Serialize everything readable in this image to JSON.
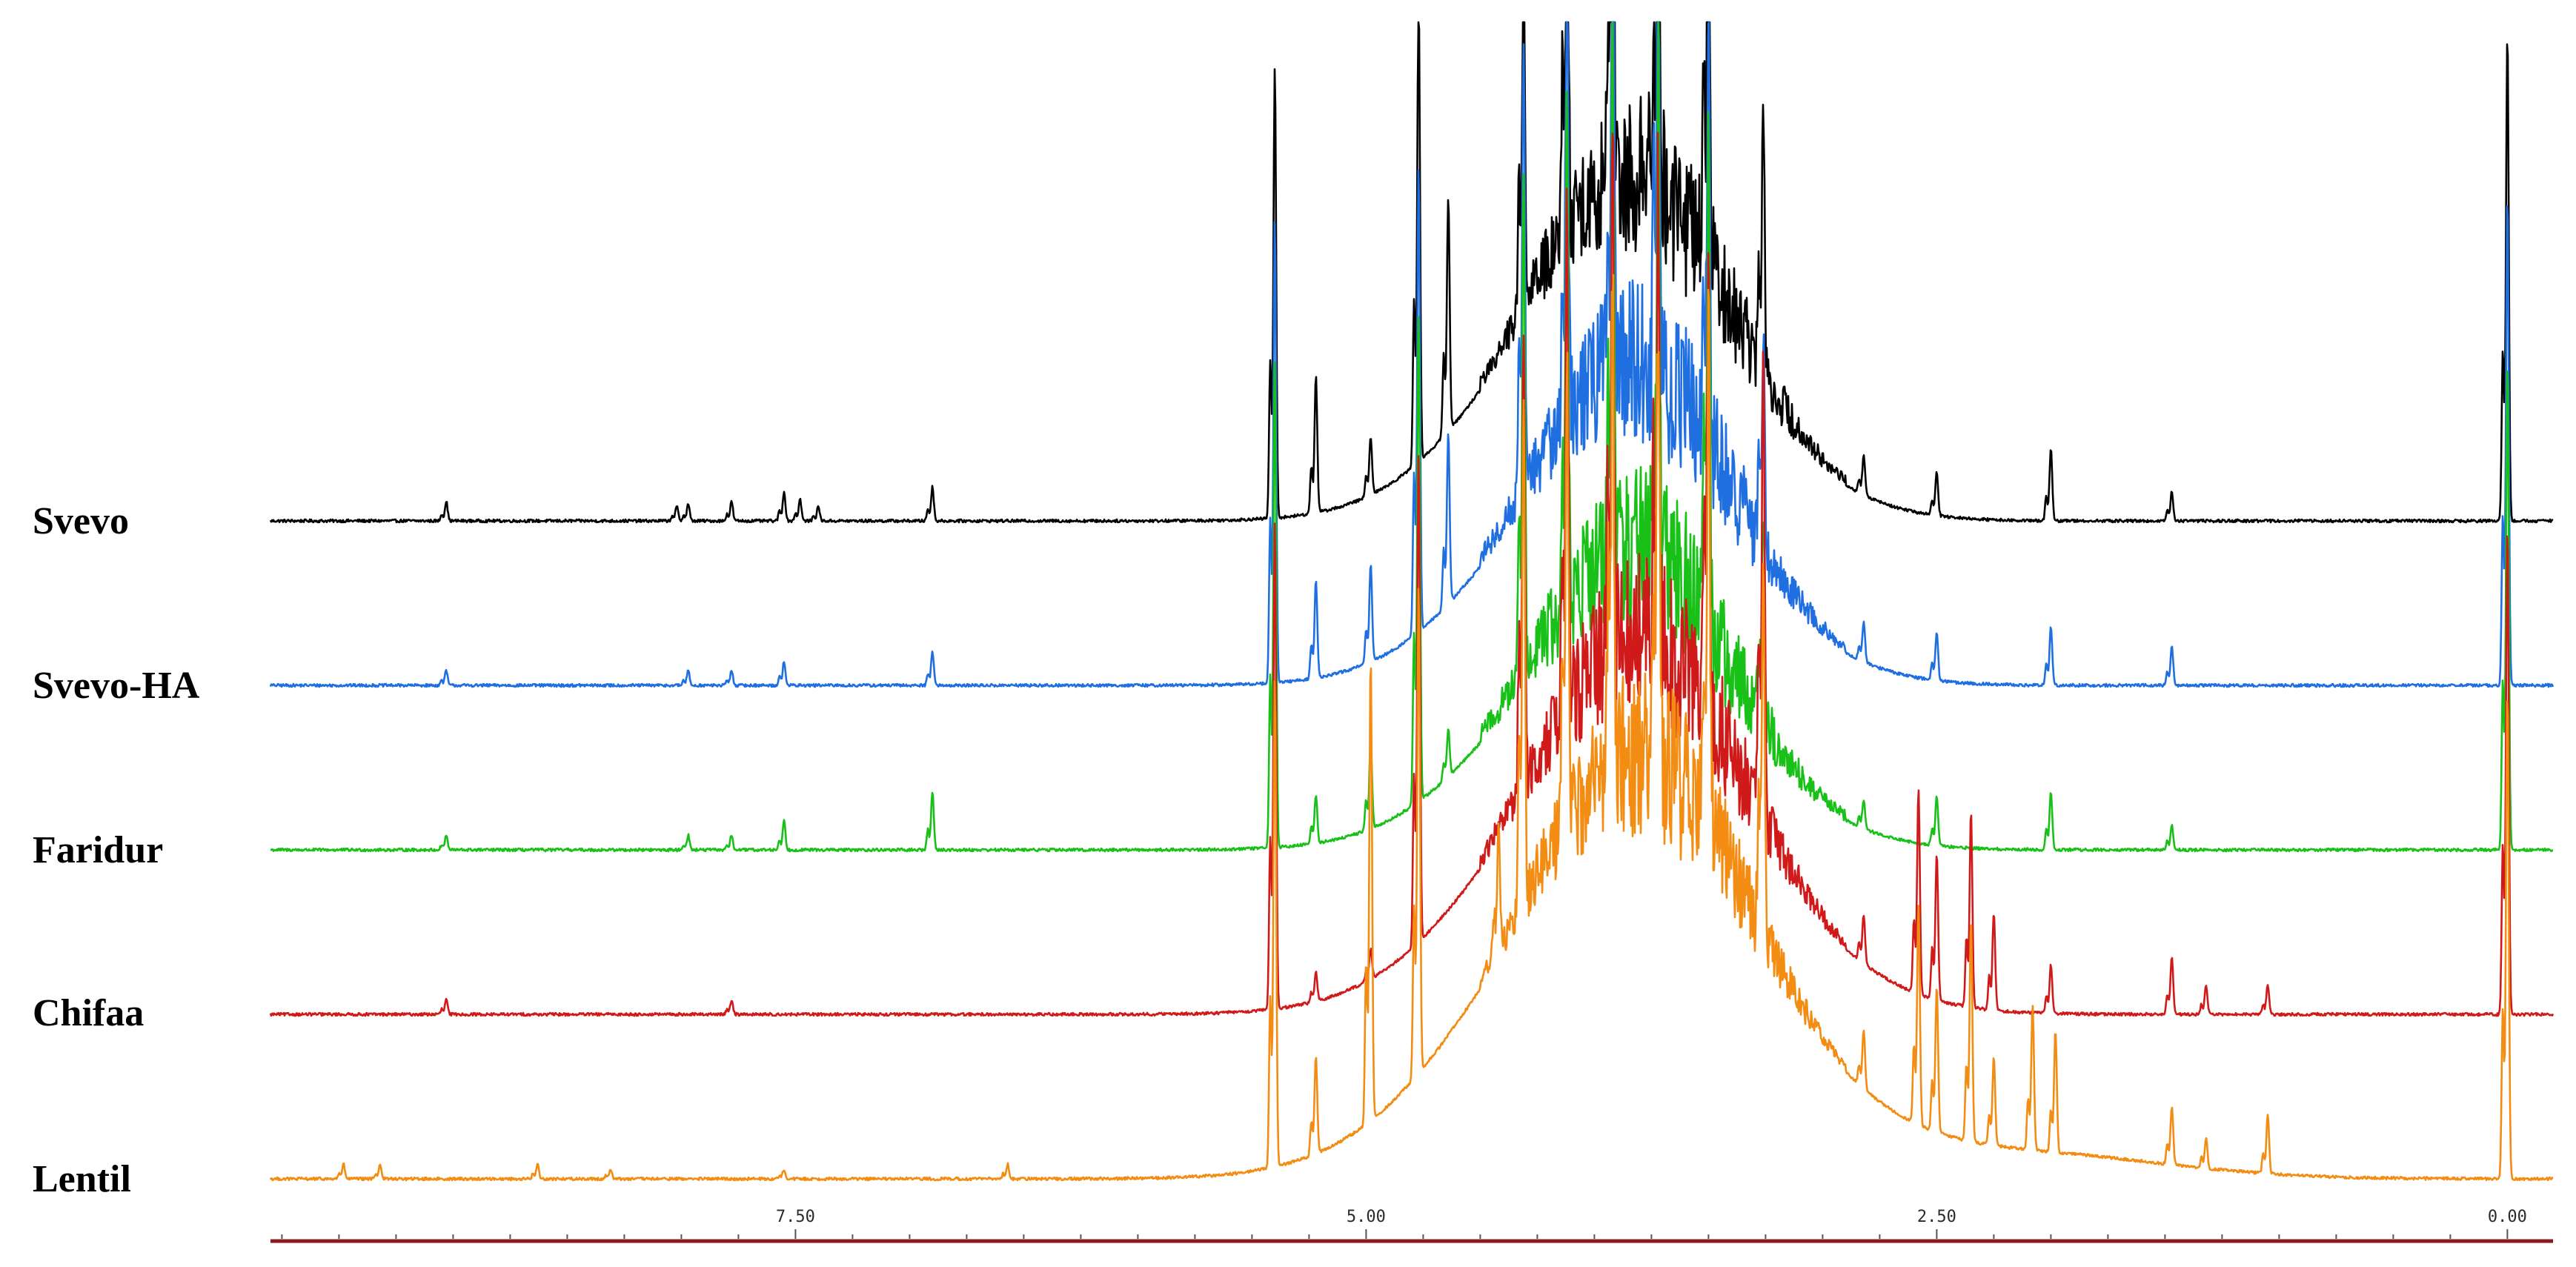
{
  "chart_data": {
    "type": "line",
    "title": "",
    "xlabel": "",
    "ylabel": "",
    "x_reversed": true,
    "xlim": [
      9.8,
      -0.2
    ],
    "x_ticks": [
      {
        "value": 7.5,
        "label": "7.50"
      },
      {
        "value": 5.0,
        "label": "5.00"
      },
      {
        "value": 2.5,
        "label": "2.50"
      },
      {
        "value": 0.0,
        "label": "0.00"
      }
    ],
    "y_axis_shown": false,
    "grid": false,
    "legend": "none",
    "baseline_color": "#8b1a1a",
    "series": [
      {
        "name": "Svevo",
        "color": "#000000",
        "peaks": [
          {
            "x": 9.03,
            "h": 0.04
          },
          {
            "x": 8.02,
            "h": 0.03
          },
          {
            "x": 7.97,
            "h": 0.035
          },
          {
            "x": 7.78,
            "h": 0.04
          },
          {
            "x": 7.55,
            "h": 0.06
          },
          {
            "x": 7.48,
            "h": 0.045
          },
          {
            "x": 7.4,
            "h": 0.03
          },
          {
            "x": 6.9,
            "h": 0.07
          },
          {
            "x": 5.4,
            "h": 0.92
          },
          {
            "x": 5.22,
            "h": 0.28
          },
          {
            "x": 4.98,
            "h": 0.12
          },
          {
            "x": 4.77,
            "h": 0.96
          },
          {
            "x": 4.64,
            "h": 0.48
          },
          {
            "x": 4.31,
            "h": 0.78
          },
          {
            "x": 4.12,
            "h": 0.98
          },
          {
            "x": 3.92,
            "h": 1.0
          },
          {
            "x": 3.72,
            "h": 1.0
          },
          {
            "x": 3.5,
            "h": 1.0
          },
          {
            "x": 3.26,
            "h": 0.58
          },
          {
            "x": 2.82,
            "h": 0.08
          },
          {
            "x": 2.5,
            "h": 0.09
          },
          {
            "x": 2.0,
            "h": 0.15
          },
          {
            "x": 1.47,
            "h": 0.06
          },
          {
            "x": 0.0,
            "h": 1.0
          }
        ],
        "humps": [
          {
            "x": 3.9,
            "h": 0.55,
            "w": 0.5
          }
        ]
      },
      {
        "name": "Svevo-HA",
        "color": "#1f6fe0",
        "peaks": [
          {
            "x": 9.03,
            "h": 0.03
          },
          {
            "x": 7.97,
            "h": 0.03
          },
          {
            "x": 7.78,
            "h": 0.03
          },
          {
            "x": 7.55,
            "h": 0.05
          },
          {
            "x": 6.9,
            "h": 0.07
          },
          {
            "x": 5.4,
            "h": 0.95
          },
          {
            "x": 5.22,
            "h": 0.2
          },
          {
            "x": 4.98,
            "h": 0.2
          },
          {
            "x": 4.77,
            "h": 0.95
          },
          {
            "x": 4.64,
            "h": 0.35
          },
          {
            "x": 4.31,
            "h": 0.9
          },
          {
            "x": 4.12,
            "h": 0.98
          },
          {
            "x": 3.92,
            "h": 1.0
          },
          {
            "x": 3.72,
            "h": 1.0
          },
          {
            "x": 3.5,
            "h": 0.95
          },
          {
            "x": 3.26,
            "h": 0.42
          },
          {
            "x": 2.82,
            "h": 0.08
          },
          {
            "x": 2.5,
            "h": 0.1
          },
          {
            "x": 2.0,
            "h": 0.12
          },
          {
            "x": 1.47,
            "h": 0.08
          },
          {
            "x": 0.0,
            "h": 1.0
          }
        ],
        "humps": [
          {
            "x": 3.9,
            "h": 0.5,
            "w": 0.5
          }
        ]
      },
      {
        "name": "Faridur",
        "color": "#18c018",
        "peaks": [
          {
            "x": 9.03,
            "h": 0.03
          },
          {
            "x": 7.97,
            "h": 0.03
          },
          {
            "x": 7.78,
            "h": 0.03
          },
          {
            "x": 7.55,
            "h": 0.06
          },
          {
            "x": 6.9,
            "h": 0.12
          },
          {
            "x": 5.4,
            "h": 1.0
          },
          {
            "x": 5.22,
            "h": 0.1
          },
          {
            "x": 4.98,
            "h": 0.18
          },
          {
            "x": 4.77,
            "h": 1.0
          },
          {
            "x": 4.64,
            "h": 0.1
          },
          {
            "x": 4.31,
            "h": 1.0
          },
          {
            "x": 4.12,
            "h": 1.0
          },
          {
            "x": 3.92,
            "h": 1.0
          },
          {
            "x": 3.72,
            "h": 1.0
          },
          {
            "x": 3.5,
            "h": 1.0
          },
          {
            "x": 3.26,
            "h": 0.42
          },
          {
            "x": 2.82,
            "h": 0.06
          },
          {
            "x": 2.5,
            "h": 0.1
          },
          {
            "x": 2.0,
            "h": 0.12
          },
          {
            "x": 1.47,
            "h": 0.05
          },
          {
            "x": 0.0,
            "h": 1.0
          }
        ],
        "humps": [
          {
            "x": 3.9,
            "h": 0.45,
            "w": 0.5
          }
        ]
      },
      {
        "name": "Chifaa",
        "color": "#d01a1a",
        "peaks": [
          {
            "x": 9.03,
            "h": 0.03
          },
          {
            "x": 7.78,
            "h": 0.03
          },
          {
            "x": 5.4,
            "h": 1.0
          },
          {
            "x": 5.22,
            "h": 0.06
          },
          {
            "x": 4.98,
            "h": 0.06
          },
          {
            "x": 4.77,
            "h": 1.0
          },
          {
            "x": 4.31,
            "h": 0.9
          },
          {
            "x": 4.12,
            "h": 1.0
          },
          {
            "x": 3.92,
            "h": 1.0
          },
          {
            "x": 3.72,
            "h": 1.0
          },
          {
            "x": 3.5,
            "h": 1.0
          },
          {
            "x": 3.26,
            "h": 1.0
          },
          {
            "x": 2.82,
            "h": 0.1
          },
          {
            "x": 2.58,
            "h": 0.42
          },
          {
            "x": 2.5,
            "h": 0.3
          },
          {
            "x": 2.35,
            "h": 0.4
          },
          {
            "x": 2.25,
            "h": 0.2
          },
          {
            "x": 2.0,
            "h": 0.1
          },
          {
            "x": 1.47,
            "h": 0.12
          },
          {
            "x": 1.32,
            "h": 0.06
          },
          {
            "x": 1.05,
            "h": 0.06
          },
          {
            "x": 0.0,
            "h": 1.0
          }
        ],
        "humps": [
          {
            "x": 3.85,
            "h": 0.6,
            "w": 0.55
          }
        ]
      },
      {
        "name": "Lentil",
        "color": "#f28c12",
        "peaks": [
          {
            "x": 9.48,
            "h": 0.03
          },
          {
            "x": 9.32,
            "h": 0.03
          },
          {
            "x": 8.63,
            "h": 0.03
          },
          {
            "x": 8.31,
            "h": 0.02
          },
          {
            "x": 7.55,
            "h": 0.02
          },
          {
            "x": 6.57,
            "h": 0.03
          },
          {
            "x": 5.4,
            "h": 1.0
          },
          {
            "x": 5.22,
            "h": 0.2
          },
          {
            "x": 4.98,
            "h": 0.95
          },
          {
            "x": 4.77,
            "h": 1.0
          },
          {
            "x": 4.42,
            "h": 0.25
          },
          {
            "x": 4.31,
            "h": 1.0
          },
          {
            "x": 4.12,
            "h": 1.0
          },
          {
            "x": 3.92,
            "h": 1.0
          },
          {
            "x": 3.72,
            "h": 1.0
          },
          {
            "x": 3.5,
            "h": 1.0
          },
          {
            "x": 3.26,
            "h": 0.8
          },
          {
            "x": 2.82,
            "h": 0.12
          },
          {
            "x": 2.58,
            "h": 0.45
          },
          {
            "x": 2.5,
            "h": 0.3
          },
          {
            "x": 2.35,
            "h": 0.45
          },
          {
            "x": 2.25,
            "h": 0.18
          },
          {
            "x": 2.08,
            "h": 0.3
          },
          {
            "x": 1.98,
            "h": 0.25
          },
          {
            "x": 1.47,
            "h": 0.12
          },
          {
            "x": 1.32,
            "h": 0.06
          },
          {
            "x": 1.05,
            "h": 0.12
          },
          {
            "x": 0.0,
            "h": 1.0
          }
        ],
        "humps": [
          {
            "x": 3.85,
            "h": 0.7,
            "w": 0.6
          },
          {
            "x": 2.1,
            "h": 0.05,
            "w": 0.6
          }
        ]
      }
    ]
  }
}
